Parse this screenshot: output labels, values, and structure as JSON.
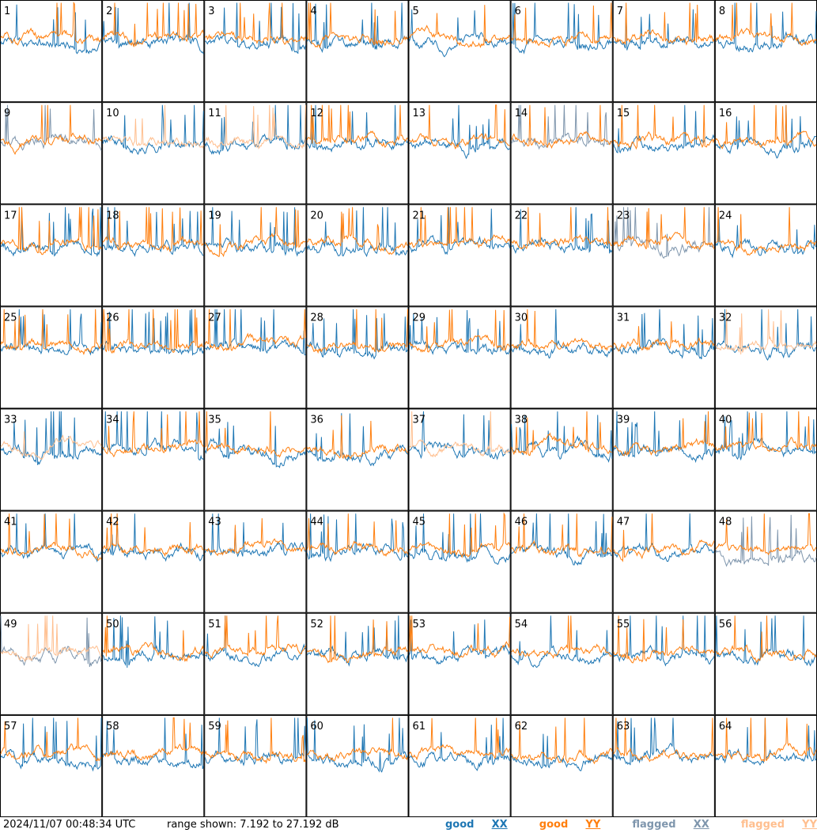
{
  "chart_data": {
    "type": "line",
    "layout": "8x8 small-multiples grid",
    "panels": [
      "1",
      "2",
      "3",
      "4",
      "5",
      "6",
      "7",
      "8",
      "9",
      "10",
      "11",
      "12",
      "13",
      "14",
      "15",
      "16",
      "17",
      "18",
      "19",
      "20",
      "21",
      "22",
      "23",
      "24",
      "25",
      "26",
      "27",
      "28",
      "29",
      "30",
      "31",
      "32",
      "33",
      "34",
      "35",
      "36",
      "37",
      "38",
      "39",
      "40",
      "41",
      "42",
      "43",
      "44",
      "45",
      "46",
      "47",
      "48",
      "49",
      "50",
      "51",
      "52",
      "53",
      "54",
      "55",
      "56",
      "57",
      "58",
      "59",
      "60",
      "61",
      "62",
      "63",
      "64"
    ],
    "series": [
      {
        "name": "good XX",
        "color": "#1f77b4"
      },
      {
        "name": "good YY",
        "color": "#ff7f0e"
      },
      {
        "name": "flagged XX",
        "color": "#7f96ad"
      },
      {
        "name": "flagged YY",
        "color": "#ffbf8f"
      }
    ],
    "flagged_xx_panels": [
      "9",
      "14",
      "23",
      "48",
      "49"
    ],
    "flagged_yy_panels": [
      "10",
      "11",
      "32",
      "33",
      "37",
      "49"
    ],
    "range_db": [
      7.192,
      27.192
    ]
  },
  "footer": {
    "timestamp": "2024/11/07 00:48:34 UTC",
    "range_text": "range shown: 7.192 to 27.192 dB"
  },
  "legend": [
    {
      "word": "good",
      "mark": "XX",
      "color": "#1f77b4"
    },
    {
      "word": "good",
      "mark": "YY",
      "color": "#ff7f0e"
    },
    {
      "word": "flagged",
      "mark": "XX",
      "color": "#7f96ad"
    },
    {
      "word": "flagged",
      "mark": "YY",
      "color": "#ffbf8f"
    }
  ]
}
